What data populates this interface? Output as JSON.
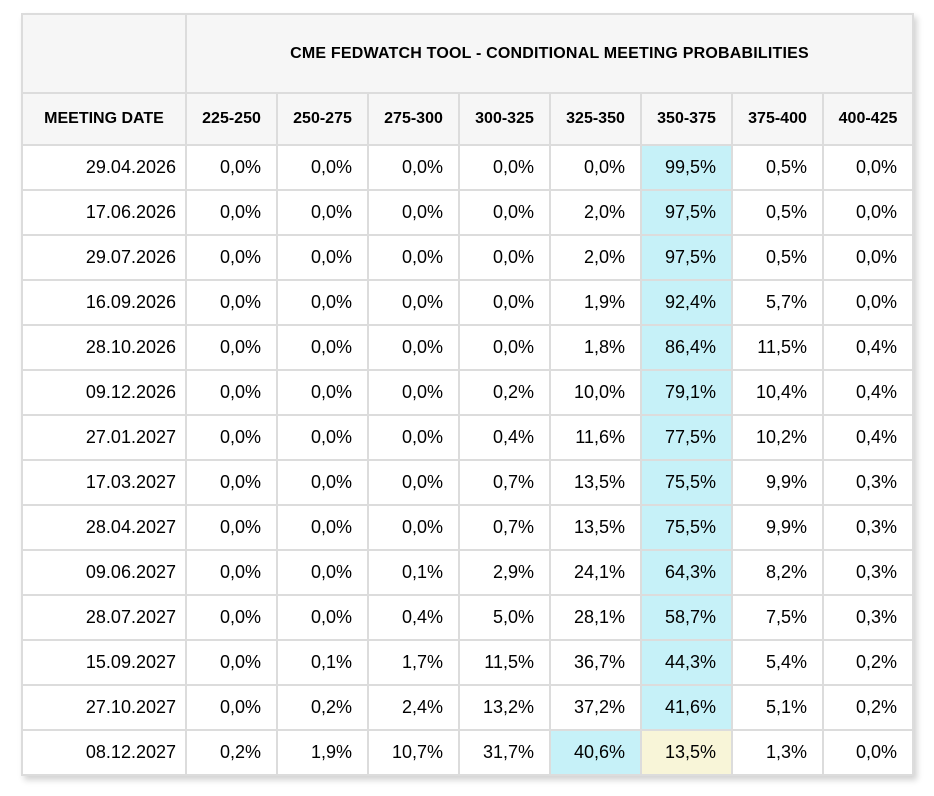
{
  "chart_data": {
    "type": "table",
    "title": "CME FEDWATCH TOOL - CONDITIONAL MEETING PROBABILITIES",
    "columns": [
      "MEETING DATE",
      "225-250",
      "250-275",
      "275-300",
      "300-325",
      "325-350",
      "350-375",
      "375-400",
      "400-425"
    ],
    "rows": [
      {
        "date": "29.04.2026",
        "values": [
          "0,0%",
          "0,0%",
          "0,0%",
          "0,0%",
          "0,0%",
          "99,5%",
          "0,5%",
          "0,0%"
        ],
        "highlights": {
          "350-375": "cyan"
        }
      },
      {
        "date": "17.06.2026",
        "values": [
          "0,0%",
          "0,0%",
          "0,0%",
          "0,0%",
          "2,0%",
          "97,5%",
          "0,5%",
          "0,0%"
        ],
        "highlights": {
          "350-375": "cyan"
        }
      },
      {
        "date": "29.07.2026",
        "values": [
          "0,0%",
          "0,0%",
          "0,0%",
          "0,0%",
          "2,0%",
          "97,5%",
          "0,5%",
          "0,0%"
        ],
        "highlights": {
          "350-375": "cyan"
        }
      },
      {
        "date": "16.09.2026",
        "values": [
          "0,0%",
          "0,0%",
          "0,0%",
          "0,0%",
          "1,9%",
          "92,4%",
          "5,7%",
          "0,0%"
        ],
        "highlights": {
          "350-375": "cyan"
        }
      },
      {
        "date": "28.10.2026",
        "values": [
          "0,0%",
          "0,0%",
          "0,0%",
          "0,0%",
          "1,8%",
          "86,4%",
          "11,5%",
          "0,4%"
        ],
        "highlights": {
          "350-375": "cyan"
        }
      },
      {
        "date": "09.12.2026",
        "values": [
          "0,0%",
          "0,0%",
          "0,0%",
          "0,2%",
          "10,0%",
          "79,1%",
          "10,4%",
          "0,4%"
        ],
        "highlights": {
          "350-375": "cyan"
        }
      },
      {
        "date": "27.01.2027",
        "values": [
          "0,0%",
          "0,0%",
          "0,0%",
          "0,4%",
          "11,6%",
          "77,5%",
          "10,2%",
          "0,4%"
        ],
        "highlights": {
          "350-375": "cyan"
        }
      },
      {
        "date": "17.03.2027",
        "values": [
          "0,0%",
          "0,0%",
          "0,0%",
          "0,7%",
          "13,5%",
          "75,5%",
          "9,9%",
          "0,3%"
        ],
        "highlights": {
          "350-375": "cyan"
        }
      },
      {
        "date": "28.04.2027",
        "values": [
          "0,0%",
          "0,0%",
          "0,0%",
          "0,7%",
          "13,5%",
          "75,5%",
          "9,9%",
          "0,3%"
        ],
        "highlights": {
          "350-375": "cyan"
        }
      },
      {
        "date": "09.06.2027",
        "values": [
          "0,0%",
          "0,0%",
          "0,1%",
          "2,9%",
          "24,1%",
          "64,3%",
          "8,2%",
          "0,3%"
        ],
        "highlights": {
          "350-375": "cyan"
        }
      },
      {
        "date": "28.07.2027",
        "values": [
          "0,0%",
          "0,0%",
          "0,4%",
          "5,0%",
          "28,1%",
          "58,7%",
          "7,5%",
          "0,3%"
        ],
        "highlights": {
          "350-375": "cyan"
        }
      },
      {
        "date": "15.09.2027",
        "values": [
          "0,0%",
          "0,1%",
          "1,7%",
          "11,5%",
          "36,7%",
          "44,3%",
          "5,4%",
          "0,2%"
        ],
        "highlights": {
          "350-375": "cyan"
        }
      },
      {
        "date": "27.10.2027",
        "values": [
          "0,0%",
          "0,2%",
          "2,4%",
          "13,2%",
          "37,2%",
          "41,6%",
          "5,1%",
          "0,2%"
        ],
        "highlights": {
          "350-375": "cyan"
        }
      },
      {
        "date": "08.12.2027",
        "values": [
          "0,2%",
          "1,9%",
          "10,7%",
          "31,7%",
          "40,6%",
          "13,5%",
          "1,3%",
          "0,0%"
        ],
        "highlights": {
          "325-350": "cyan",
          "350-375": "yellow"
        }
      }
    ],
    "highlight_colors": {
      "cyan": "#c6f1f8",
      "yellow": "#f8f5d8"
    },
    "layout": {
      "grid": "on",
      "header_background": "#f6f6f6",
      "gridline_color": "#dcdcdc",
      "decimal_separator": ","
    }
  }
}
